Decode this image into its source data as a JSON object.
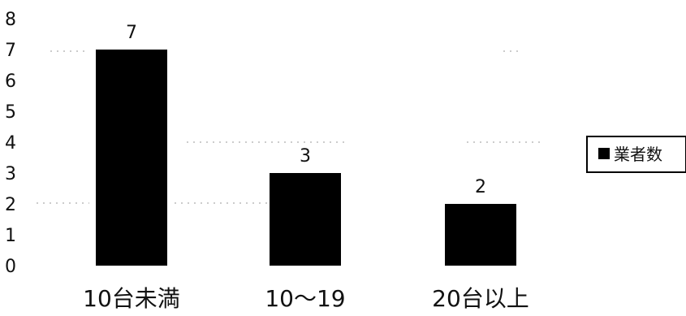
{
  "chart_data": {
    "type": "bar",
    "categories": [
      "10台未満",
      "10～19",
      "20台以上"
    ],
    "series": [
      {
        "name": "業者数",
        "values": [
          7,
          3,
          2
        ]
      }
    ],
    "data_labels": [
      "7",
      "3",
      "2"
    ],
    "y_ticks": [
      "0",
      "1",
      "2",
      "3",
      "4",
      "5",
      "6",
      "7",
      "8"
    ],
    "ylim": [
      0,
      8
    ],
    "grid": false,
    "legend_position": "right",
    "bar_color": "#000000",
    "title": "",
    "xlabel": "",
    "ylabel": ""
  }
}
